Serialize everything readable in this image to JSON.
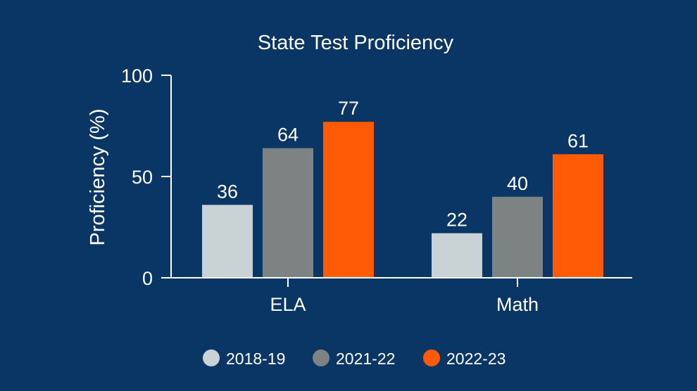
{
  "chart_data": {
    "type": "bar",
    "title": "State Test Proficiency",
    "xlabel": "",
    "ylabel": "Proficiency (%)",
    "ylim": [
      0,
      100
    ],
    "yticks": [
      "0",
      "50",
      "100"
    ],
    "categories": [
      "ELA",
      "Math"
    ],
    "series": [
      {
        "name": "2018-19",
        "color": "#c9d3d6",
        "values": [
          36,
          22
        ],
        "labels": [
          "36",
          "22"
        ]
      },
      {
        "name": "2021-22",
        "color": "#7d8283",
        "values": [
          64,
          40
        ],
        "labels": [
          "64",
          "40"
        ]
      },
      {
        "name": "2022-23",
        "color": "#ff5a06",
        "values": [
          77,
          61
        ],
        "labels": [
          "77",
          "61"
        ]
      }
    ],
    "legend_position": "bottom",
    "background": "#0a3665",
    "axis_color": "#ffffff"
  }
}
